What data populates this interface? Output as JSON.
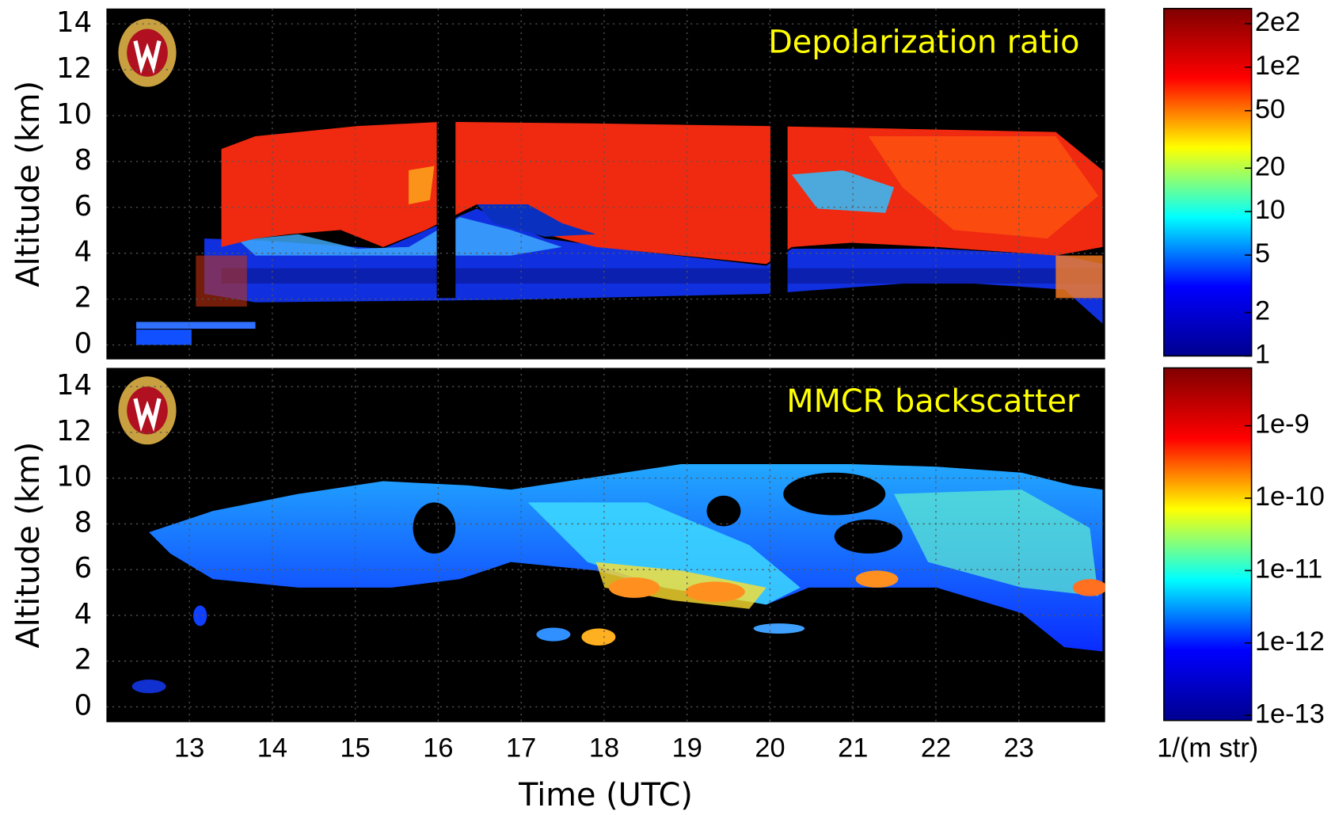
{
  "chart_data": [
    {
      "type": "heatmap",
      "title": "Depolarization ratio",
      "ylabel": "Altitude (km)",
      "xlim": [
        12,
        24.04
      ],
      "xticks": [
        13,
        14,
        15,
        16,
        17,
        18,
        19,
        20,
        21,
        22,
        23
      ],
      "ylim": [
        -0.63,
        14.67
      ],
      "yticks": [
        0,
        2,
        4,
        6,
        8,
        10,
        12,
        14
      ],
      "grid": true,
      "colorbar": {
        "colormap": "jet",
        "log": true,
        "clim": [
          1,
          255
        ],
        "ticks": [
          {
            "value": 200,
            "label": "2e2"
          },
          {
            "value": 100,
            "label": "1e2"
          },
          50,
          20,
          10,
          5,
          2,
          1
        ]
      }
    },
    {
      "type": "heatmap",
      "title": "MMCR backscatter",
      "ylabel": "Altitude (km)",
      "xlabel": "Time (UTC)",
      "xlim": [
        12,
        24.04
      ],
      "xticks": [
        13,
        14,
        15,
        16,
        17,
        18,
        19,
        20,
        21,
        22,
        23
      ],
      "ylim": [
        -0.67,
        14.82
      ],
      "yticks": [
        0,
        2,
        4,
        6,
        8,
        10,
        12,
        14
      ],
      "grid": true,
      "colorbar": {
        "colormap": "jet",
        "log": true,
        "clim": [
          8.5e-14,
          6.3e-09
        ],
        "label": "1/(m str)",
        "ticks": [
          {
            "value": 1e-09,
            "label": "1e-9"
          },
          {
            "value": 1e-10,
            "label": "1e-10"
          },
          {
            "value": 1e-11,
            "label": "1e-11"
          },
          {
            "value": 1e-12,
            "label": "1e-12"
          },
          {
            "value": 1e-13,
            "label": "1e-13"
          }
        ]
      }
    }
  ]
}
